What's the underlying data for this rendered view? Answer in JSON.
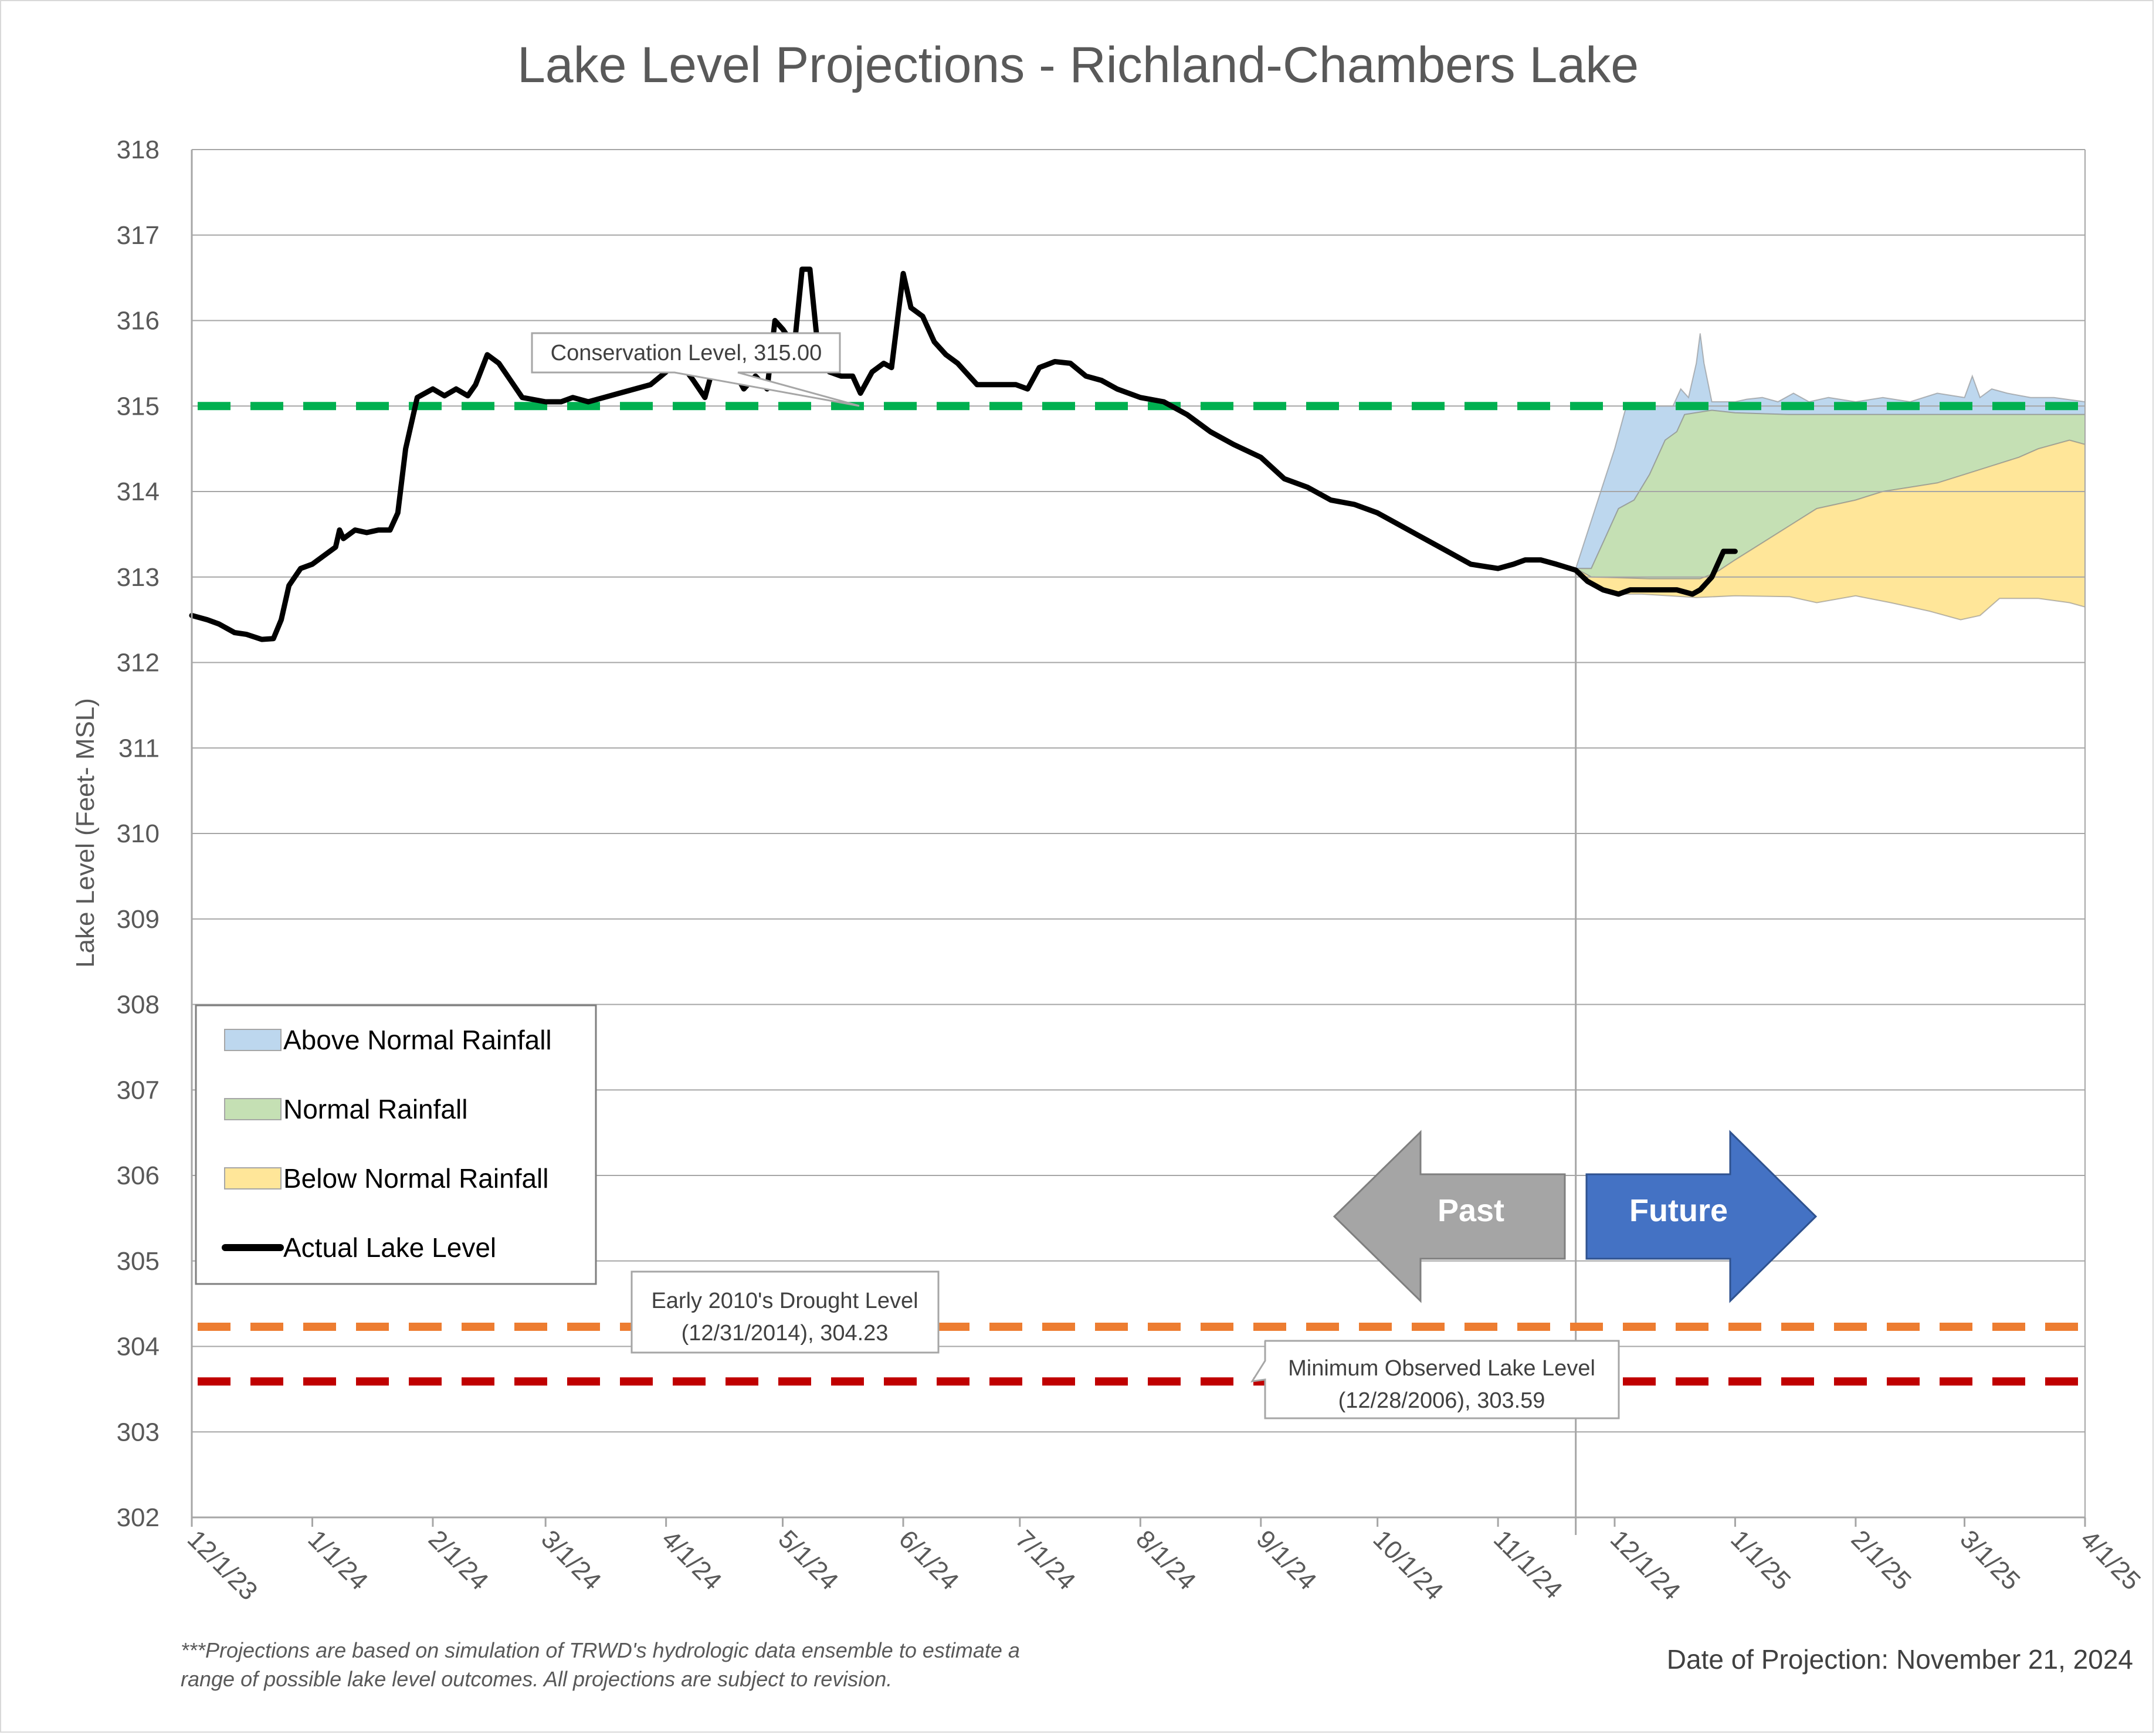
{
  "title": "Lake Level Projections - Richland-Chambers Lake",
  "ylabel": "Lake Level (Feet- MSL)",
  "footnote_line1": "***Projections are based on simulation of TRWD's hydrologic data ensemble to estimate a",
  "footnote_line2": "range of possible lake level outcomes.  All projections are subject to revision.",
  "projection_date_text": "Date of Projection: November 21, 2024",
  "colors": {
    "above": "#bdd7ee",
    "normal": "#c5e0b4",
    "below": "#ffe699",
    "actual": "#000000",
    "conservation": "#00b050",
    "drought": "#ed7d31",
    "minimum": "#c00000",
    "past_arrow": "#a5a5a5",
    "future_arrow": "#4472c4"
  },
  "arrows": {
    "past": "Past",
    "future": "Future"
  },
  "chart_data": {
    "type": "area",
    "title": "Lake Level Projections - Richland-Chambers Lake",
    "ylabel": "Lake Level (Feet- MSL)",
    "ylim": [
      302,
      318
    ],
    "yticks": [
      302,
      303,
      304,
      305,
      306,
      307,
      308,
      309,
      310,
      311,
      312,
      313,
      314,
      315,
      316,
      317,
      318
    ],
    "xlim": [
      "2023-12-01",
      "2025-04-01"
    ],
    "xticks": [
      {
        "date": "2023-12-01",
        "label": "12/1/23"
      },
      {
        "date": "2024-01-01",
        "label": "1/1/24"
      },
      {
        "date": "2024-02-01",
        "label": "2/1/24"
      },
      {
        "date": "2024-03-01",
        "label": "3/1/24"
      },
      {
        "date": "2024-04-01",
        "label": "4/1/24"
      },
      {
        "date": "2024-05-01",
        "label": "5/1/24"
      },
      {
        "date": "2024-06-01",
        "label": "6/1/24"
      },
      {
        "date": "2024-07-01",
        "label": "7/1/24"
      },
      {
        "date": "2024-08-01",
        "label": "8/1/24"
      },
      {
        "date": "2024-09-01",
        "label": "9/1/24"
      },
      {
        "date": "2024-10-01",
        "label": "10/1/24"
      },
      {
        "date": "2024-11-01",
        "label": "11/1/24"
      },
      {
        "date": "2024-12-01",
        "label": "12/1/24"
      },
      {
        "date": "2025-01-01",
        "label": "1/1/25"
      },
      {
        "date": "2025-02-01",
        "label": "2/1/25"
      },
      {
        "date": "2025-03-01",
        "label": "3/1/25"
      },
      {
        "date": "2025-04-01",
        "label": "4/1/25"
      }
    ],
    "grid": true,
    "legend_position": "left",
    "projection_date": "2024-11-21",
    "reference_lines": [
      {
        "name": "Conservation Level",
        "value": 315.0,
        "label": "Conservation Level, 315.00"
      },
      {
        "name": "Early 2010's Drought Level",
        "value": 304.23,
        "label_line1": "Early 2010's Drought Level",
        "label_line2": "(12/31/2014), 304.23"
      },
      {
        "name": "Minimum Observed Lake Level",
        "value": 303.59,
        "label_line1": "Minimum Observed Lake Level",
        "label_line2": "(12/28/2006), 303.59"
      }
    ],
    "legend": [
      {
        "key": "above",
        "label": "Above Normal Rainfall"
      },
      {
        "key": "normal",
        "label": "Normal Rainfall"
      },
      {
        "key": "below",
        "label": "Below Normal Rainfall"
      },
      {
        "key": "actual",
        "label": "Actual Lake Level"
      }
    ],
    "bands": {
      "above": {
        "upper": [
          [
            "2024-11-21",
            313.1
          ],
          [
            "2024-11-26",
            313.8
          ],
          [
            "2024-12-01",
            314.5
          ],
          [
            "2024-12-04",
            315.0
          ],
          [
            "2024-12-16",
            315.0
          ],
          [
            "2024-12-18",
            315.2
          ],
          [
            "2024-12-20",
            315.1
          ],
          [
            "2024-12-22",
            315.5
          ],
          [
            "2024-12-23",
            315.85
          ],
          [
            "2024-12-24",
            315.5
          ],
          [
            "2024-12-26",
            315.05
          ],
          [
            "2025-01-01",
            315.05
          ],
          [
            "2025-01-04",
            315.08
          ],
          [
            "2025-01-08",
            315.1
          ],
          [
            "2025-01-12",
            315.05
          ],
          [
            "2025-01-16",
            315.15
          ],
          [
            "2025-01-20",
            315.05
          ],
          [
            "2025-01-25",
            315.1
          ],
          [
            "2025-02-01",
            315.05
          ],
          [
            "2025-02-08",
            315.1
          ],
          [
            "2025-02-15",
            315.05
          ],
          [
            "2025-02-22",
            315.15
          ],
          [
            "2025-03-01",
            315.1
          ],
          [
            "2025-03-03",
            315.35
          ],
          [
            "2025-03-05",
            315.1
          ],
          [
            "2025-03-08",
            315.2
          ],
          [
            "2025-03-12",
            315.15
          ],
          [
            "2025-03-18",
            315.1
          ],
          [
            "2025-03-24",
            315.1
          ],
          [
            "2025-04-01",
            315.05
          ]
        ],
        "lower": [
          [
            "2024-11-21",
            313.1
          ],
          [
            "2024-11-25",
            313.1
          ],
          [
            "2024-11-28",
            313.4
          ],
          [
            "2024-12-02",
            313.8
          ],
          [
            "2024-12-06",
            313.9
          ],
          [
            "2024-12-10",
            314.2
          ],
          [
            "2024-12-14",
            314.6
          ],
          [
            "2024-12-17",
            314.7
          ],
          [
            "2024-12-19",
            314.9
          ],
          [
            "2024-12-26",
            314.95
          ],
          [
            "2025-01-01",
            314.92
          ],
          [
            "2025-01-15",
            314.9
          ],
          [
            "2025-02-01",
            314.9
          ],
          [
            "2025-03-01",
            314.9
          ],
          [
            "2025-04-01",
            314.9
          ]
        ]
      },
      "normal": {
        "upper": [
          [
            "2024-11-21",
            313.1
          ],
          [
            "2024-11-25",
            313.1
          ],
          [
            "2024-11-28",
            313.4
          ],
          [
            "2024-12-02",
            313.8
          ],
          [
            "2024-12-06",
            313.9
          ],
          [
            "2024-12-10",
            314.2
          ],
          [
            "2024-12-14",
            314.6
          ],
          [
            "2024-12-17",
            314.7
          ],
          [
            "2024-12-19",
            314.9
          ],
          [
            "2024-12-26",
            314.95
          ],
          [
            "2025-01-01",
            314.92
          ],
          [
            "2025-01-15",
            314.9
          ],
          [
            "2025-02-01",
            314.9
          ],
          [
            "2025-03-01",
            314.9
          ],
          [
            "2025-04-01",
            314.9
          ]
        ],
        "lower": [
          [
            "2024-11-21",
            313.1
          ],
          [
            "2024-11-25",
            313.0
          ],
          [
            "2024-12-10",
            312.98
          ],
          [
            "2024-12-23",
            312.98
          ],
          [
            "2024-12-27",
            313.05
          ],
          [
            "2025-01-01",
            313.2
          ],
          [
            "2025-01-08",
            313.4
          ],
          [
            "2025-01-15",
            313.6
          ],
          [
            "2025-01-22",
            313.8
          ],
          [
            "2025-02-01",
            313.9
          ],
          [
            "2025-02-08",
            314.0
          ],
          [
            "2025-02-15",
            314.05
          ],
          [
            "2025-02-22",
            314.1
          ],
          [
            "2025-03-01",
            314.2
          ],
          [
            "2025-03-08",
            314.3
          ],
          [
            "2025-03-15",
            314.4
          ],
          [
            "2025-03-20",
            314.5
          ],
          [
            "2025-03-28",
            314.6
          ],
          [
            "2025-04-01",
            314.55
          ]
        ]
      },
      "below": {
        "upper": [
          [
            "2024-11-21",
            313.1
          ],
          [
            "2024-11-25",
            313.0
          ],
          [
            "2024-12-10",
            312.98
          ],
          [
            "2024-12-23",
            312.98
          ],
          [
            "2024-12-27",
            313.05
          ],
          [
            "2025-01-01",
            313.2
          ],
          [
            "2025-01-08",
            313.4
          ],
          [
            "2025-01-15",
            313.6
          ],
          [
            "2025-01-22",
            313.8
          ],
          [
            "2025-02-01",
            313.9
          ],
          [
            "2025-02-08",
            314.0
          ],
          [
            "2025-02-15",
            314.05
          ],
          [
            "2025-02-22",
            314.1
          ],
          [
            "2025-03-01",
            314.2
          ],
          [
            "2025-03-08",
            314.3
          ],
          [
            "2025-03-15",
            314.4
          ],
          [
            "2025-03-20",
            314.5
          ],
          [
            "2025-03-28",
            314.6
          ],
          [
            "2025-04-01",
            314.55
          ]
        ],
        "lower": [
          [
            "2024-11-21",
            313.05
          ],
          [
            "2024-11-26",
            312.9
          ],
          [
            "2024-12-01",
            312.8
          ],
          [
            "2024-12-08",
            312.8
          ],
          [
            "2024-12-15",
            312.78
          ],
          [
            "2024-12-22",
            312.76
          ],
          [
            "2025-01-01",
            312.78
          ],
          [
            "2025-01-15",
            312.77
          ],
          [
            "2025-01-22",
            312.7
          ],
          [
            "2025-02-01",
            312.78
          ],
          [
            "2025-02-10",
            312.7
          ],
          [
            "2025-02-20",
            312.6
          ],
          [
            "2025-02-28",
            312.5
          ],
          [
            "2025-03-05",
            312.55
          ],
          [
            "2025-03-10",
            312.75
          ],
          [
            "2025-03-20",
            312.75
          ],
          [
            "2025-03-28",
            312.7
          ],
          [
            "2025-04-01",
            312.65
          ]
        ]
      }
    },
    "actual": [
      [
        "2023-12-01",
        312.55
      ],
      [
        "2023-12-05",
        312.5
      ],
      [
        "2023-12-08",
        312.45
      ],
      [
        "2023-12-12",
        312.35
      ],
      [
        "2023-12-15",
        312.33
      ],
      [
        "2023-12-19",
        312.27
      ],
      [
        "2023-12-22",
        312.28
      ],
      [
        "2023-12-24",
        312.5
      ],
      [
        "2023-12-26",
        312.9
      ],
      [
        "2023-12-29",
        313.1
      ],
      [
        "2024-01-01",
        313.15
      ],
      [
        "2024-01-04",
        313.25
      ],
      [
        "2024-01-07",
        313.35
      ],
      [
        "2024-01-08",
        313.55
      ],
      [
        "2024-01-09",
        313.45
      ],
      [
        "2024-01-12",
        313.55
      ],
      [
        "2024-01-15",
        313.52
      ],
      [
        "2024-01-18",
        313.55
      ],
      [
        "2024-01-21",
        313.55
      ],
      [
        "2024-01-23",
        313.75
      ],
      [
        "2024-01-25",
        314.5
      ],
      [
        "2024-01-28",
        315.1
      ],
      [
        "2024-02-01",
        315.2
      ],
      [
        "2024-02-04",
        315.12
      ],
      [
        "2024-02-07",
        315.2
      ],
      [
        "2024-02-10",
        315.12
      ],
      [
        "2024-02-12",
        315.25
      ],
      [
        "2024-02-15",
        315.6
      ],
      [
        "2024-02-18",
        315.5
      ],
      [
        "2024-02-21",
        315.3
      ],
      [
        "2024-02-24",
        315.1
      ],
      [
        "2024-03-01",
        315.05
      ],
      [
        "2024-03-05",
        315.05
      ],
      [
        "2024-03-08",
        315.1
      ],
      [
        "2024-03-12",
        315.05
      ],
      [
        "2024-03-16",
        315.1
      ],
      [
        "2024-03-20",
        315.15
      ],
      [
        "2024-03-24",
        315.2
      ],
      [
        "2024-03-28",
        315.25
      ],
      [
        "2024-04-01",
        315.4
      ],
      [
        "2024-04-04",
        315.55
      ],
      [
        "2024-04-08",
        315.3
      ],
      [
        "2024-04-11",
        315.1
      ],
      [
        "2024-04-14",
        315.6
      ],
      [
        "2024-04-18",
        315.45
      ],
      [
        "2024-04-21",
        315.2
      ],
      [
        "2024-04-24",
        315.35
      ],
      [
        "2024-04-27",
        315.2
      ],
      [
        "2024-04-29",
        316.0
      ],
      [
        "2024-05-01",
        315.9
      ],
      [
        "2024-05-04",
        315.7
      ],
      [
        "2024-05-06",
        316.6
      ],
      [
        "2024-05-08",
        316.6
      ],
      [
        "2024-05-10",
        315.7
      ],
      [
        "2024-05-13",
        315.4
      ],
      [
        "2024-05-16",
        315.35
      ],
      [
        "2024-05-19",
        315.35
      ],
      [
        "2024-05-21",
        315.15
      ],
      [
        "2024-05-24",
        315.4
      ],
      [
        "2024-05-27",
        315.5
      ],
      [
        "2024-05-29",
        315.45
      ],
      [
        "2024-06-01",
        316.55
      ],
      [
        "2024-06-03",
        316.15
      ],
      [
        "2024-06-06",
        316.05
      ],
      [
        "2024-06-09",
        315.75
      ],
      [
        "2024-06-12",
        315.6
      ],
      [
        "2024-06-15",
        315.5
      ],
      [
        "2024-06-20",
        315.25
      ],
      [
        "2024-06-25",
        315.25
      ],
      [
        "2024-06-30",
        315.25
      ],
      [
        "2024-07-03",
        315.2
      ],
      [
        "2024-07-06",
        315.45
      ],
      [
        "2024-07-10",
        315.52
      ],
      [
        "2024-07-14",
        315.5
      ],
      [
        "2024-07-18",
        315.35
      ],
      [
        "2024-07-22",
        315.3
      ],
      [
        "2024-07-26",
        315.2
      ],
      [
        "2024-08-01",
        315.1
      ],
      [
        "2024-08-07",
        315.05
      ],
      [
        "2024-08-13",
        314.9
      ],
      [
        "2024-08-19",
        314.7
      ],
      [
        "2024-08-25",
        314.55
      ],
      [
        "2024-09-01",
        314.4
      ],
      [
        "2024-09-07",
        314.15
      ],
      [
        "2024-09-13",
        314.05
      ],
      [
        "2024-09-19",
        313.9
      ],
      [
        "2024-09-25",
        313.85
      ],
      [
        "2024-10-01",
        313.75
      ],
      [
        "2024-10-07",
        313.6
      ],
      [
        "2024-10-13",
        313.45
      ],
      [
        "2024-10-19",
        313.3
      ],
      [
        "2024-10-25",
        313.15
      ],
      [
        "2024-11-01",
        313.1
      ],
      [
        "2024-11-05",
        313.15
      ],
      [
        "2024-11-08",
        313.2
      ],
      [
        "2024-11-12",
        313.2
      ],
      [
        "2024-11-16",
        313.15
      ],
      [
        "2024-11-21",
        313.08
      ],
      [
        "2024-11-24",
        312.95
      ],
      [
        "2024-11-28",
        312.85
      ],
      [
        "2024-12-02",
        312.8
      ],
      [
        "2024-12-05",
        312.85
      ],
      [
        "2024-12-09",
        312.85
      ],
      [
        "2024-12-13",
        312.85
      ],
      [
        "2024-12-17",
        312.85
      ],
      [
        "2024-12-21",
        312.8
      ],
      [
        "2024-12-23",
        312.85
      ],
      [
        "2024-12-26",
        313.0
      ],
      [
        "2024-12-29",
        313.3
      ],
      [
        "2025-01-01",
        313.3
      ]
    ]
  }
}
